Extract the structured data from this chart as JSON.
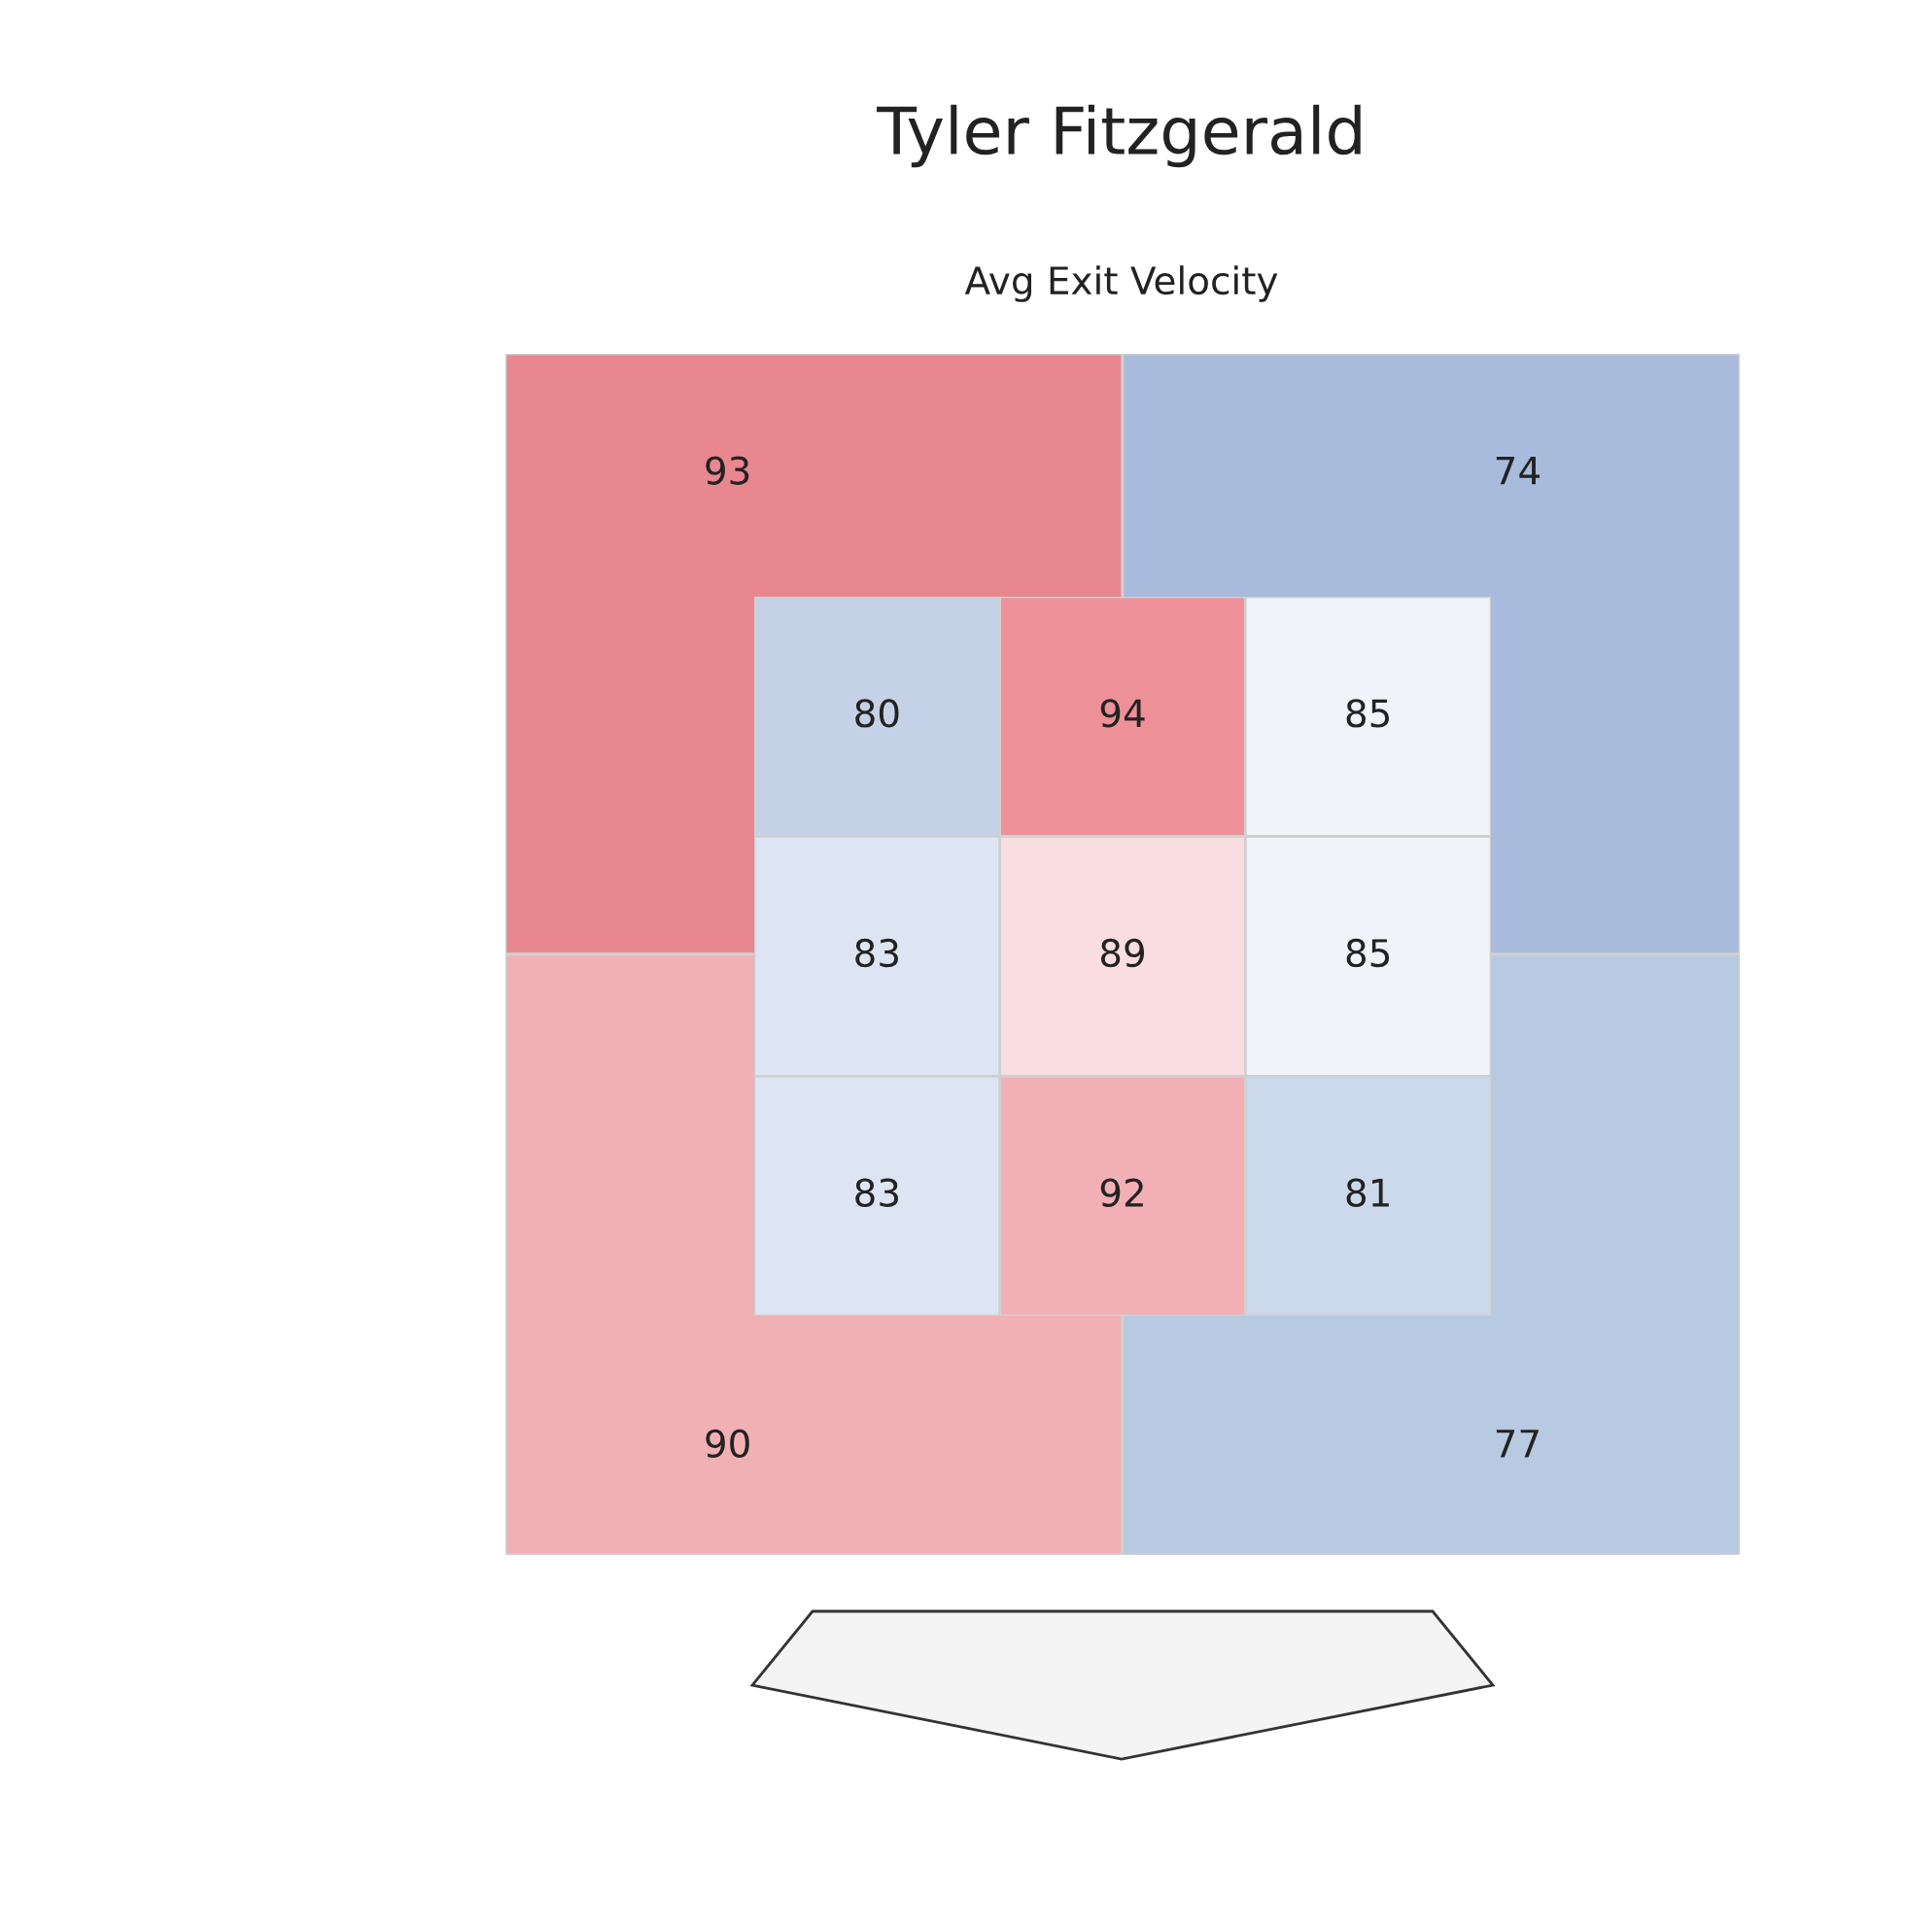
{
  "chart_data": [
    {
      "type": "other",
      "title": "Tyler Fitzgerald",
      "subtitle": "Avg Exit Velocity",
      "values": [
        93,
        74,
        90,
        77
      ],
      "colors": [
        "#e8878f",
        "#a8bbdc",
        "#f0b0b4",
        "#b8c9e2"
      ],
      "data_labels": true
    },
    {
      "type": "heatmap",
      "categories": [
        null,
        null,
        null
      ],
      "y_categories": [
        null,
        null,
        null
      ],
      "cells": [
        [
          80,
          94,
          85
        ],
        [
          83,
          89,
          85
        ],
        [
          83,
          92,
          81
        ]
      ],
      "data_labels": true,
      "tick_labels": false
    }
  ]
}
